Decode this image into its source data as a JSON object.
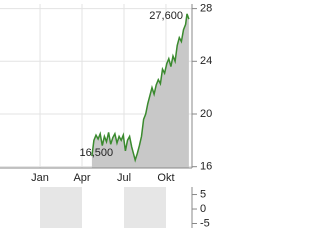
{
  "chart_data": {
    "type": "area",
    "x": [
      4.71,
      4.85,
      5.0,
      5.15,
      5.3,
      5.45,
      5.6,
      5.75,
      5.9,
      6.05,
      6.2,
      6.35,
      6.5,
      6.65,
      6.8,
      6.95,
      7.1,
      7.25,
      7.4,
      7.55,
      7.7,
      7.8,
      7.95,
      8.1,
      8.25,
      8.4,
      8.55,
      8.7,
      8.85,
      9.0,
      9.15,
      9.3,
      9.45,
      9.6,
      9.75,
      9.9,
      10.05,
      10.2,
      10.35,
      10.5,
      10.65,
      10.8,
      10.95,
      11.1,
      11.25,
      11.4,
      11.5,
      11.6,
      11.64
    ],
    "values": [
      16.8,
      18.0,
      18.4,
      18.1,
      18.5,
      17.6,
      18.3,
      17.9,
      18.6,
      17.7,
      18.2,
      18.5,
      17.8,
      18.3,
      18.0,
      18.4,
      17.2,
      18.0,
      18.3,
      17.5,
      16.9,
      16.5,
      17.0,
      17.6,
      18.3,
      19.6,
      20.0,
      20.8,
      21.4,
      22.0,
      21.5,
      22.2,
      22.6,
      22.3,
      23.4,
      23.1,
      23.8,
      24.2,
      23.6,
      24.4,
      24.0,
      25.2,
      25.8,
      25.5,
      26.4,
      26.8,
      27.6,
      27.3,
      27.2
    ],
    "color": "#3a8a2e",
    "fill": "#c8c8c8",
    "annotations": [
      {
        "x": 11.5,
        "y": 27.6,
        "label": "27,600"
      },
      {
        "x": 7.8,
        "y": 16.5,
        "label": "16,500"
      }
    ],
    "xlim": [
      -1.86,
      11.86
    ],
    "xticks": [
      {
        "value": 1,
        "label": "Jan"
      },
      {
        "value": 4,
        "label": "Apr"
      },
      {
        "value": 7,
        "label": "Jul"
      },
      {
        "value": 10,
        "label": "Okt"
      }
    ],
    "ylim": [
      15.9,
      28.35
    ],
    "yticks": [
      16,
      20,
      24,
      28
    ],
    "grid": true,
    "lower_panel": {
      "ylim": [
        -6.55,
        7.6
      ],
      "yticks": [
        5,
        0,
        -5
      ]
    }
  }
}
